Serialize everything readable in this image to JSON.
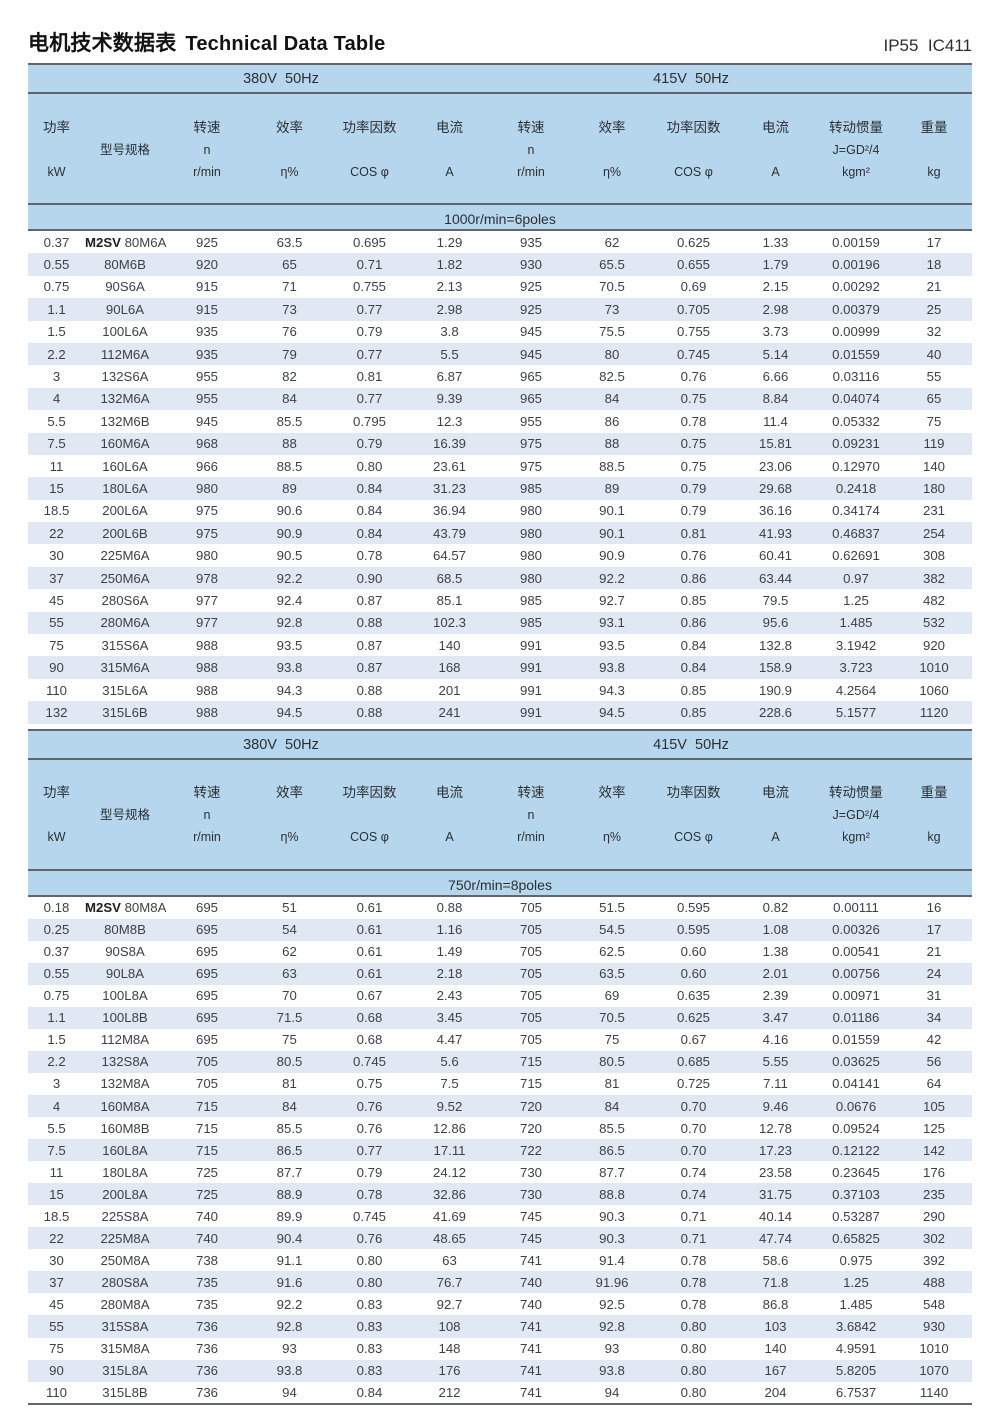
{
  "header": {
    "title_zh": "电机技术数据表",
    "title_en": "Technical Data Table",
    "rating": "IP55  IC411"
  },
  "colors": {
    "band": "#b5d6ed",
    "stripe": "#dfe8f3",
    "line": "#60666b",
    "text": "#3e4144"
  },
  "columns": [
    {
      "key": "power",
      "l1": "功率",
      "l2": "",
      "l3": "kW"
    },
    {
      "key": "model",
      "l1": "",
      "l2": "型号规格",
      "l3": ""
    },
    {
      "key": "speed-380",
      "l1": "转速",
      "l2": "n",
      "l3": "r/min"
    },
    {
      "key": "efficiency-380",
      "l1": "效率",
      "l2": "",
      "l3": "η%"
    },
    {
      "key": "power-factor-380",
      "l1": "功率因数",
      "l2": "",
      "l3": "COS φ"
    },
    {
      "key": "current-380",
      "l1": "电流",
      "l2": "",
      "l3": "A"
    },
    {
      "key": "speed-415",
      "l1": "转速",
      "l2": "n",
      "l3": "r/min"
    },
    {
      "key": "efficiency-415",
      "l1": "效率",
      "l2": "",
      "l3": "η%"
    },
    {
      "key": "power-factor-415",
      "l1": "功率因数",
      "l2": "",
      "l3": "COS φ"
    },
    {
      "key": "current-415",
      "l1": "电流",
      "l2": "",
      "l3": "A"
    },
    {
      "key": "inertia",
      "l1": "转动惯量",
      "l2": "J=GD²/4",
      "l3": "kgm²"
    },
    {
      "key": "weight",
      "l1": "重量",
      "l2": "",
      "l3": "kg"
    }
  ],
  "tables": [
    {
      "id": "6poles",
      "voltage_left": "380V  50Hz",
      "voltage_right": "415V  50Hz",
      "group": "1000r/min=6poles",
      "series_prefix": "M2SV",
      "rows": [
        [
          "0.37",
          "80M6A",
          "925",
          "63.5",
          "0.695",
          "1.29",
          "935",
          "62",
          "0.625",
          "1.33",
          "0.00159",
          "17"
        ],
        [
          "0.55",
          "80M6B",
          "920",
          "65",
          "0.71",
          "1.82",
          "930",
          "65.5",
          "0.655",
          "1.79",
          "0.00196",
          "18"
        ],
        [
          "0.75",
          "90S6A",
          "915",
          "71",
          "0.755",
          "2.13",
          "925",
          "70.5",
          "0.69",
          "2.15",
          "0.00292",
          "21"
        ],
        [
          "1.1",
          "90L6A",
          "915",
          "73",
          "0.77",
          "2.98",
          "925",
          "73",
          "0.705",
          "2.98",
          "0.00379",
          "25"
        ],
        [
          "1.5",
          "100L6A",
          "935",
          "76",
          "0.79",
          "3.8",
          "945",
          "75.5",
          "0.755",
          "3.73",
          "0.00999",
          "32"
        ],
        [
          "2.2",
          "112M6A",
          "935",
          "79",
          "0.77",
          "5.5",
          "945",
          "80",
          "0.745",
          "5.14",
          "0.01559",
          "40"
        ],
        [
          "3",
          "132S6A",
          "955",
          "82",
          "0.81",
          "6.87",
          "965",
          "82.5",
          "0.76",
          "6.66",
          "0.03116",
          "55"
        ],
        [
          "4",
          "132M6A",
          "955",
          "84",
          "0.77",
          "9.39",
          "965",
          "84",
          "0.75",
          "8.84",
          "0.04074",
          "65"
        ],
        [
          "5.5",
          "132M6B",
          "945",
          "85.5",
          "0.795",
          "12.3",
          "955",
          "86",
          "0.78",
          "11.4",
          "0.05332",
          "75"
        ],
        [
          "7.5",
          "160M6A",
          "968",
          "88",
          "0.79",
          "16.39",
          "975",
          "88",
          "0.75",
          "15.81",
          "0.09231",
          "119"
        ],
        [
          "11",
          "160L6A",
          "966",
          "88.5",
          "0.80",
          "23.61",
          "975",
          "88.5",
          "0.75",
          "23.06",
          "0.12970",
          "140"
        ],
        [
          "15",
          "180L6A",
          "980",
          "89",
          "0.84",
          "31.23",
          "985",
          "89",
          "0.79",
          "29.68",
          "0.2418",
          "180"
        ],
        [
          "18.5",
          "200L6A",
          "975",
          "90.6",
          "0.84",
          "36.94",
          "980",
          "90.1",
          "0.79",
          "36.16",
          "0.34174",
          "231"
        ],
        [
          "22",
          "200L6B",
          "975",
          "90.9",
          "0.84",
          "43.79",
          "980",
          "90.1",
          "0.81",
          "41.93",
          "0.46837",
          "254"
        ],
        [
          "30",
          "225M6A",
          "980",
          "90.5",
          "0.78",
          "64.57",
          "980",
          "90.9",
          "0.76",
          "60.41",
          "0.62691",
          "308"
        ],
        [
          "37",
          "250M6A",
          "978",
          "92.2",
          "0.90",
          "68.5",
          "980",
          "92.2",
          "0.86",
          "63.44",
          "0.97",
          "382"
        ],
        [
          "45",
          "280S6A",
          "977",
          "92.4",
          "0.87",
          "85.1",
          "985",
          "92.7",
          "0.85",
          "79.5",
          "1.25",
          "482"
        ],
        [
          "55",
          "280M6A",
          "977",
          "92.8",
          "0.88",
          "102.3",
          "985",
          "93.1",
          "0.86",
          "95.6",
          "1.485",
          "532"
        ],
        [
          "75",
          "315S6A",
          "988",
          "93.5",
          "0.87",
          "140",
          "991",
          "93.5",
          "0.84",
          "132.8",
          "3.1942",
          "920"
        ],
        [
          "90",
          "315M6A",
          "988",
          "93.8",
          "0.87",
          "168",
          "991",
          "93.8",
          "0.84",
          "158.9",
          "3.723",
          "1010"
        ],
        [
          "110",
          "315L6A",
          "988",
          "94.3",
          "0.88",
          "201",
          "991",
          "94.3",
          "0.85",
          "190.9",
          "4.2564",
          "1060"
        ],
        [
          "132",
          "315L6B",
          "988",
          "94.5",
          "0.88",
          "241",
          "991",
          "94.5",
          "0.85",
          "228.6",
          "5.1577",
          "1120"
        ]
      ]
    },
    {
      "id": "8poles",
      "voltage_left": "380V  50Hz",
      "voltage_right": "415V  50Hz",
      "group": "750r/min=8poles",
      "series_prefix": "M2SV",
      "rows": [
        [
          "0.18",
          "80M8A",
          "695",
          "51",
          "0.61",
          "0.88",
          "705",
          "51.5",
          "0.595",
          "0.82",
          "0.00111",
          "16"
        ],
        [
          "0.25",
          "80M8B",
          "695",
          "54",
          "0.61",
          "1.16",
          "705",
          "54.5",
          "0.595",
          "1.08",
          "0.00326",
          "17"
        ],
        [
          "0.37",
          "90S8A",
          "695",
          "62",
          "0.61",
          "1.49",
          "705",
          "62.5",
          "0.60",
          "1.38",
          "0.00541",
          "21"
        ],
        [
          "0.55",
          "90L8A",
          "695",
          "63",
          "0.61",
          "2.18",
          "705",
          "63.5",
          "0.60",
          "2.01",
          "0.00756",
          "24"
        ],
        [
          "0.75",
          "100L8A",
          "695",
          "70",
          "0.67",
          "2.43",
          "705",
          "69",
          "0.635",
          "2.39",
          "0.00971",
          "31"
        ],
        [
          "1.1",
          "100L8B",
          "695",
          "71.5",
          "0.68",
          "3.45",
          "705",
          "70.5",
          "0.625",
          "3.47",
          "0.01186",
          "34"
        ],
        [
          "1.5",
          "112M8A",
          "695",
          "75",
          "0.68",
          "4.47",
          "705",
          "75",
          "0.67",
          "4.16",
          "0.01559",
          "42"
        ],
        [
          "2.2",
          "132S8A",
          "705",
          "80.5",
          "0.745",
          "5.6",
          "715",
          "80.5",
          "0.685",
          "5.55",
          "0.03625",
          "56"
        ],
        [
          "3",
          "132M8A",
          "705",
          "81",
          "0.75",
          "7.5",
          "715",
          "81",
          "0.725",
          "7.11",
          "0.04141",
          "64"
        ],
        [
          "4",
          "160M8A",
          "715",
          "84",
          "0.76",
          "9.52",
          "720",
          "84",
          "0.70",
          "9.46",
          "0.0676",
          "105"
        ],
        [
          "5.5",
          "160M8B",
          "715",
          "85.5",
          "0.76",
          "12.86",
          "720",
          "85.5",
          "0.70",
          "12.78",
          "0.09524",
          "125"
        ],
        [
          "7.5",
          "160L8A",
          "715",
          "86.5",
          "0.77",
          "17.11",
          "722",
          "86.5",
          "0.70",
          "17.23",
          "0.12122",
          "142"
        ],
        [
          "11",
          "180L8A",
          "725",
          "87.7",
          "0.79",
          "24.12",
          "730",
          "87.7",
          "0.74",
          "23.58",
          "0.23645",
          "176"
        ],
        [
          "15",
          "200L8A",
          "725",
          "88.9",
          "0.78",
          "32.86",
          "730",
          "88.8",
          "0.74",
          "31.75",
          "0.37103",
          "235"
        ],
        [
          "18.5",
          "225S8A",
          "740",
          "89.9",
          "0.745",
          "41.69",
          "745",
          "90.3",
          "0.71",
          "40.14",
          "0.53287",
          "290"
        ],
        [
          "22",
          "225M8A",
          "740",
          "90.4",
          "0.76",
          "48.65",
          "745",
          "90.3",
          "0.71",
          "47.74",
          "0.65825",
          "302"
        ],
        [
          "30",
          "250M8A",
          "738",
          "91.1",
          "0.80",
          "63",
          "741",
          "91.4",
          "0.78",
          "58.6",
          "0.975",
          "392"
        ],
        [
          "37",
          "280S8A",
          "735",
          "91.6",
          "0.80",
          "76.7",
          "740",
          "91.96",
          "0.78",
          "71.8",
          "1.25",
          "488"
        ],
        [
          "45",
          "280M8A",
          "735",
          "92.2",
          "0.83",
          "92.7",
          "740",
          "92.5",
          "0.78",
          "86.8",
          "1.485",
          "548"
        ],
        [
          "55",
          "315S8A",
          "736",
          "92.8",
          "0.83",
          "108",
          "741",
          "92.8",
          "0.80",
          "103",
          "3.6842",
          "930"
        ],
        [
          "75",
          "315M8A",
          "736",
          "93",
          "0.83",
          "148",
          "741",
          "93",
          "0.80",
          "140",
          "4.9591",
          "1010"
        ],
        [
          "90",
          "315L8A",
          "736",
          "93.8",
          "0.83",
          "176",
          "741",
          "93.8",
          "0.80",
          "167",
          "5.8205",
          "1070"
        ],
        [
          "110",
          "315L8B",
          "736",
          "94",
          "0.84",
          "212",
          "741",
          "94",
          "0.80",
          "204",
          "6.7537",
          "1140"
        ]
      ]
    }
  ]
}
